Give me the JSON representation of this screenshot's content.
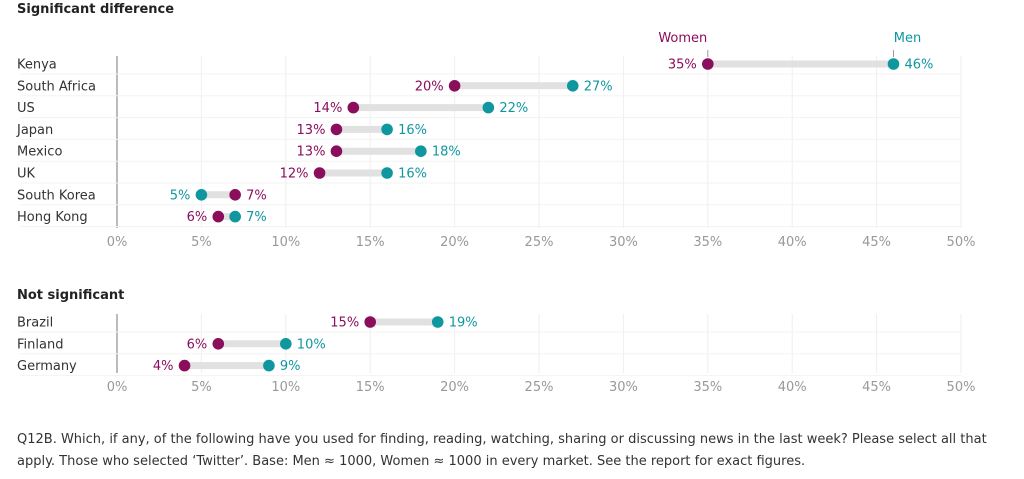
{
  "colors": {
    "women": "#8a0e5c",
    "men": "#0f97a0",
    "bar": "#e1e1e1",
    "grid": "#eeeeee",
    "axis": "#777777"
  },
  "chart_data": [
    {
      "type": "dot",
      "title": "Significant difference",
      "xlim": [
        0,
        50
      ],
      "ticks": [
        "0%",
        "5%",
        "10%",
        "15%",
        "20%",
        "25%",
        "30%",
        "35%",
        "40%",
        "45%",
        "50%"
      ],
      "legend": {
        "women": "Women",
        "men": "Men",
        "placement": "top-right"
      },
      "categories": [
        "Kenya",
        "South Africa",
        "US",
        "Japan",
        "Mexico",
        "UK",
        "South Korea",
        "Hong Kong"
      ],
      "series": [
        {
          "name": "Women",
          "values": [
            35,
            20,
            14,
            13,
            13,
            12,
            7,
            6
          ],
          "labels": [
            "35%",
            "20%",
            "14%",
            "13%",
            "13%",
            "12%",
            "7%",
            "6%"
          ]
        },
        {
          "name": "Men",
          "values": [
            46,
            27,
            22,
            16,
            18,
            16,
            5,
            7
          ],
          "labels": [
            "46%",
            "27%",
            "22%",
            "16%",
            "18%",
            "16%",
            "5%",
            "7%"
          ]
        }
      ]
    },
    {
      "type": "dot",
      "title": "Not significant",
      "xlim": [
        0,
        50
      ],
      "ticks": [
        "0%",
        "5%",
        "10%",
        "15%",
        "20%",
        "25%",
        "30%",
        "35%",
        "40%",
        "45%",
        "50%"
      ],
      "categories": [
        "Brazil",
        "Finland",
        "Germany"
      ],
      "series": [
        {
          "name": "Women",
          "values": [
            15,
            6,
            4
          ],
          "labels": [
            "15%",
            "6%",
            "4%"
          ]
        },
        {
          "name": "Men",
          "values": [
            19,
            10,
            9
          ],
          "labels": [
            "19%",
            "10%",
            "9%"
          ]
        }
      ]
    }
  ],
  "footnote": "Q12B. Which, if any, of the following have you used for finding, reading, watching, sharing or discussing news in the last week? Please select all that apply. Those who selected ‘Twitter’. Base: Men ≈ 1000, Women ≈ 1000 in every market. See the report for exact figures."
}
